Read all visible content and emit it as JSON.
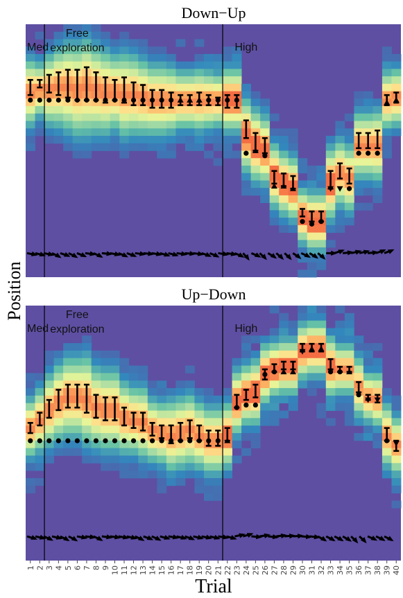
{
  "chart_data": {
    "type": "heatmap",
    "ylabel": "Position",
    "xlabel": "Trial",
    "x_ticks": [
      "1",
      "2",
      "3",
      "4",
      "5",
      "6",
      "7",
      "8",
      "9",
      "10",
      "11",
      "12",
      "13",
      "14",
      "15",
      "16",
      "17",
      "18",
      "19",
      "20",
      "21",
      "22",
      "23",
      "24",
      "25",
      "26",
      "27",
      "28",
      "29",
      "30",
      "31",
      "32",
      "33",
      "34",
      "35",
      "36",
      "37",
      "38",
      "39",
      "40"
    ],
    "phase_boundaries_after_trial": [
      2,
      21
    ],
    "panels": [
      {
        "title": "Down−Up",
        "phase_labels": [
          {
            "text": "Med",
            "trial": 1
          },
          {
            "text": "Free\nexploration",
            "trial": 6
          },
          {
            "text": "High",
            "trial": 24
          }
        ],
        "center": [
          0.73,
          0.74,
          0.74,
          0.75,
          0.75,
          0.74,
          0.75,
          0.74,
          0.73,
          0.73,
          0.72,
          0.72,
          0.71,
          0.7,
          0.7,
          0.7,
          0.7,
          0.7,
          0.7,
          0.7,
          0.7,
          0.7,
          0.7,
          0.56,
          0.52,
          0.5,
          0.4,
          0.37,
          0.35,
          0.24,
          0.22,
          0.22,
          0.37,
          0.41,
          0.39,
          0.52,
          0.52,
          0.52,
          0.7,
          0.71
        ],
        "err_top": [
          0.78,
          0.78,
          0.8,
          0.81,
          0.82,
          0.82,
          0.83,
          0.81,
          0.79,
          0.78,
          0.79,
          0.77,
          0.76,
          0.74,
          0.74,
          0.73,
          0.72,
          0.72,
          0.73,
          0.72,
          0.71,
          0.72,
          0.72,
          0.62,
          0.57,
          0.55,
          0.42,
          0.41,
          0.4,
          0.27,
          0.26,
          0.26,
          0.42,
          0.45,
          0.43,
          0.57,
          0.57,
          0.58,
          0.72,
          0.73
        ],
        "err_bot": [
          0.72,
          0.75,
          0.73,
          0.72,
          0.71,
          0.7,
          0.7,
          0.7,
          0.69,
          0.7,
          0.69,
          0.68,
          0.68,
          0.67,
          0.67,
          0.67,
          0.68,
          0.68,
          0.68,
          0.68,
          0.68,
          0.67,
          0.67,
          0.55,
          0.5,
          0.49,
          0.37,
          0.36,
          0.35,
          0.24,
          0.22,
          0.22,
          0.35,
          0.39,
          0.37,
          0.51,
          0.51,
          0.51,
          0.68,
          0.69
        ],
        "marker": [
          "circle",
          "circle",
          "circle",
          "circle",
          "circle",
          "circle",
          "circle",
          "circle",
          "circle",
          "circle",
          "circle",
          "circle",
          "circle",
          "circle",
          "circle",
          "circle",
          "up",
          "up",
          "up",
          "circle",
          "circle",
          "circle",
          "circle",
          "circle",
          "up",
          "circle",
          "up",
          "up",
          "up",
          "circle",
          "circle",
          "circle",
          "down",
          "down",
          "circle",
          "circle",
          "circle",
          "circle",
          "up",
          "up"
        ],
        "marker_value": [
          0.7,
          0.7,
          0.7,
          0.7,
          0.7,
          0.7,
          0.7,
          0.7,
          0.7,
          0.7,
          0.7,
          0.7,
          0.7,
          0.7,
          0.7,
          0.7,
          0.7,
          0.7,
          0.7,
          0.7,
          0.7,
          0.7,
          0.7,
          0.49,
          0.5,
          0.48,
          0.36,
          0.36,
          0.35,
          0.22,
          0.21,
          0.22,
          0.35,
          0.35,
          0.35,
          0.49,
          0.49,
          0.49,
          0.69,
          0.7
        ]
      },
      {
        "title": "Up−Down",
        "phase_labels": [
          {
            "text": "Med",
            "trial": 1
          },
          {
            "text": "Free\nexploration",
            "trial": 6
          },
          {
            "text": "High",
            "trial": 24
          }
        ],
        "center": [
          0.52,
          0.55,
          0.59,
          0.62,
          0.64,
          0.64,
          0.63,
          0.6,
          0.59,
          0.59,
          0.56,
          0.55,
          0.54,
          0.51,
          0.5,
          0.49,
          0.5,
          0.51,
          0.49,
          0.47,
          0.47,
          0.49,
          0.62,
          0.65,
          0.66,
          0.73,
          0.75,
          0.76,
          0.76,
          0.82,
          0.83,
          0.83,
          0.76,
          0.75,
          0.75,
          0.68,
          0.64,
          0.63,
          0.49,
          0.45
        ],
        "err_top": [
          0.54,
          0.58,
          0.63,
          0.67,
          0.69,
          0.69,
          0.69,
          0.65,
          0.64,
          0.64,
          0.6,
          0.58,
          0.58,
          0.54,
          0.53,
          0.53,
          0.54,
          0.55,
          0.53,
          0.51,
          0.51,
          0.52,
          0.65,
          0.67,
          0.69,
          0.75,
          0.77,
          0.78,
          0.78,
          0.85,
          0.85,
          0.85,
          0.79,
          0.76,
          0.76,
          0.7,
          0.65,
          0.65,
          0.52,
          0.47
        ],
        "err_bot": [
          0.5,
          0.53,
          0.56,
          0.59,
          0.6,
          0.6,
          0.58,
          0.56,
          0.55,
          0.55,
          0.53,
          0.52,
          0.51,
          0.49,
          0.48,
          0.46,
          0.47,
          0.48,
          0.47,
          0.45,
          0.45,
          0.47,
          0.6,
          0.63,
          0.64,
          0.71,
          0.74,
          0.75,
          0.75,
          0.82,
          0.82,
          0.82,
          0.75,
          0.74,
          0.74,
          0.66,
          0.63,
          0.62,
          0.47,
          0.43
        ],
        "marker": [
          "circle",
          "circle",
          "circle",
          "circle",
          "circle",
          "circle",
          "circle",
          "circle",
          "circle",
          "circle",
          "circle",
          "circle",
          "circle",
          "circle",
          "circle",
          "circle",
          "circle",
          "circle",
          "circle",
          "circle",
          "circle",
          "up",
          "circle",
          "circle",
          "circle",
          "circle",
          "circle",
          "up",
          "up",
          "down",
          "up",
          "up",
          "circle",
          "circle",
          "up",
          "circle",
          "down",
          "down",
          "circle",
          "down"
        ],
        "marker_value": [
          0.47,
          0.47,
          0.47,
          0.47,
          0.47,
          0.47,
          0.47,
          0.47,
          0.47,
          0.47,
          0.47,
          0.47,
          0.47,
          0.47,
          0.47,
          0.47,
          0.47,
          0.47,
          0.47,
          0.47,
          0.47,
          0.47,
          0.6,
          0.61,
          0.61,
          0.73,
          0.74,
          0.74,
          0.74,
          0.82,
          0.83,
          0.83,
          0.74,
          0.74,
          0.74,
          0.65,
          0.63,
          0.63,
          0.47,
          0.46
        ]
      }
    ]
  }
}
